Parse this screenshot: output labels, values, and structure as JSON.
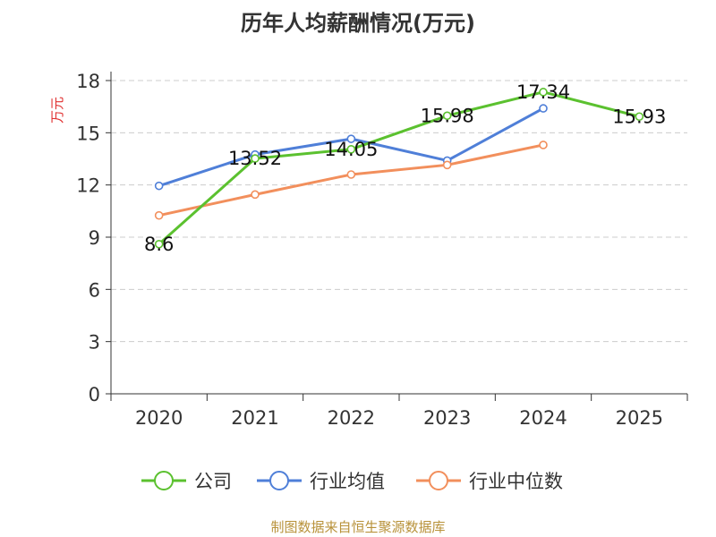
{
  "title": "历年人均薪酬情况(万元)",
  "source_note": "制图数据来自恒生聚源数据库",
  "chart_data": {
    "type": "line",
    "title": "历年人均薪酬情况(万元)",
    "xlabel": "",
    "ylabel": "万元",
    "categories": [
      "2020",
      "2021",
      "2022",
      "2023",
      "2024",
      "2025"
    ],
    "ylim": [
      0,
      18
    ],
    "yticks": [
      0,
      3,
      6,
      9,
      12,
      15,
      18
    ],
    "grid": true,
    "legend_position": "bottom",
    "series": [
      {
        "name": "公司",
        "color": "#5bc12f",
        "values": [
          8.6,
          13.52,
          14.05,
          15.98,
          17.34,
          15.93
        ],
        "data_labels": [
          "8.6",
          "13.52",
          "14.05",
          "15.98",
          "17.34",
          "15.93"
        ]
      },
      {
        "name": "行业均值",
        "color": "#4f7fd8",
        "values": [
          11.95,
          13.75,
          14.65,
          13.4,
          16.4,
          null
        ]
      },
      {
        "name": "行业中位数",
        "color": "#f28f5c",
        "values": [
          10.25,
          11.45,
          12.6,
          13.15,
          14.3,
          null
        ]
      }
    ]
  }
}
